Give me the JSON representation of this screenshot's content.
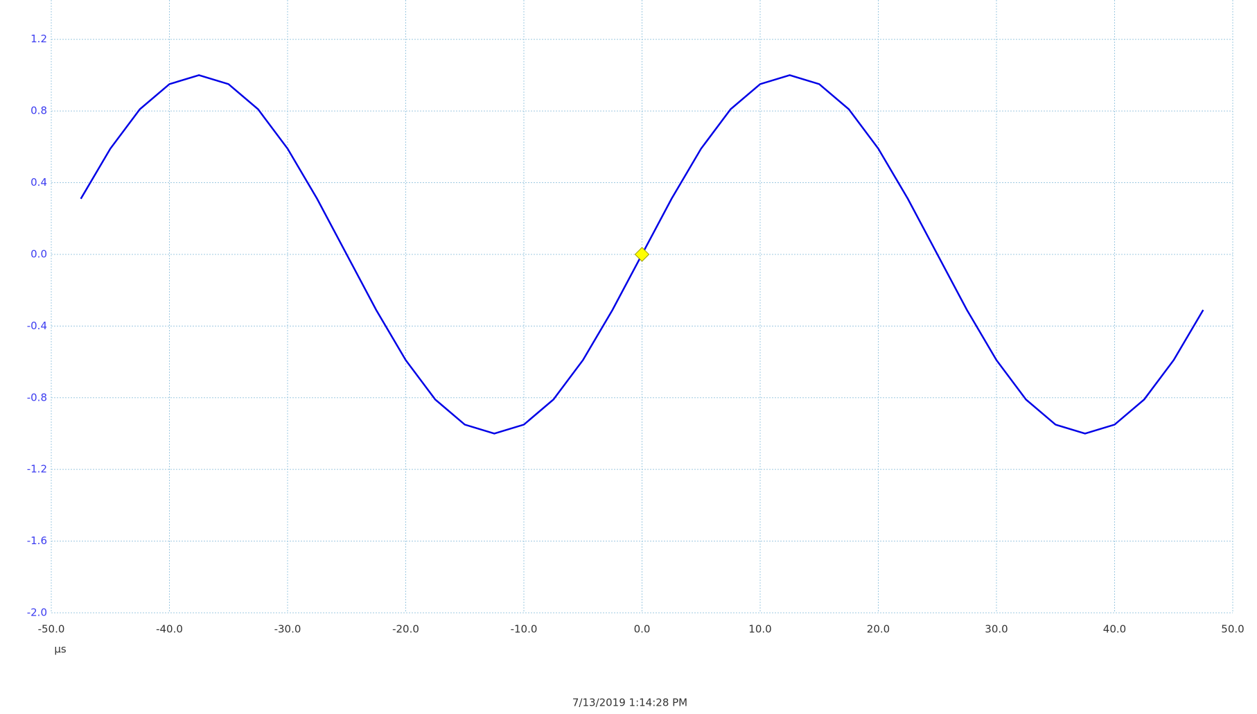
{
  "chart_data": {
    "type": "line",
    "x_label": "µs",
    "timestamp": "7/13/2019 1:14:28 PM",
    "x": [
      -47.5,
      -45,
      -42.5,
      -40,
      -37.5,
      -35,
      -32.5,
      -30,
      -27.5,
      -25,
      -22.5,
      -20,
      -17.5,
      -15,
      -12.5,
      -10,
      -7.5,
      -5,
      -2.5,
      0,
      2.5,
      5,
      7.5,
      10,
      12.5,
      15,
      17.5,
      20,
      22.5,
      25,
      27.5,
      30,
      32.5,
      35,
      37.5,
      40,
      42.5,
      45,
      47.5
    ],
    "series": [
      {
        "color": "#0000e6",
        "values": [
          0.31,
          0.59,
          0.81,
          0.95,
          1.0,
          0.95,
          0.81,
          0.59,
          0.31,
          0,
          -0.31,
          -0.59,
          -0.81,
          -0.95,
          -1.0,
          -0.95,
          -0.81,
          -0.59,
          -0.31,
          0,
          0.31,
          0.59,
          0.81,
          0.95,
          1.0,
          0.95,
          0.81,
          0.59,
          0.31,
          0,
          -0.31,
          -0.59,
          -0.81,
          -0.95,
          -1.0,
          -0.95,
          -0.81,
          -0.59,
          -0.31
        ]
      }
    ],
    "trigger": {
      "x": 0,
      "y": 0,
      "color": "#ffff00"
    },
    "xlim": [
      -50,
      50
    ],
    "ylim": [
      -2.0,
      1.4
    ],
    "xticks": [
      {
        "value": -50,
        "label": "-50.0"
      },
      {
        "value": -40,
        "label": "-40.0"
      },
      {
        "value": -30,
        "label": "-30.0"
      },
      {
        "value": -20,
        "label": "-20.0"
      },
      {
        "value": -10,
        "label": "-10.0"
      },
      {
        "value": 0,
        "label": "0.0"
      },
      {
        "value": 10,
        "label": "10.0"
      },
      {
        "value": 20,
        "label": "20.0"
      },
      {
        "value": 30,
        "label": "30.0"
      },
      {
        "value": 40,
        "label": "40.0"
      },
      {
        "value": 50,
        "label": "50.0"
      }
    ],
    "yticks": [
      {
        "value": -2.0,
        "label": "-2.0"
      },
      -1.6,
      -1.2,
      -0.8,
      -0.4,
      {
        "value": 0,
        "label": "0.0"
      },
      0.4,
      0.8,
      1.2
    ],
    "grid": true
  }
}
